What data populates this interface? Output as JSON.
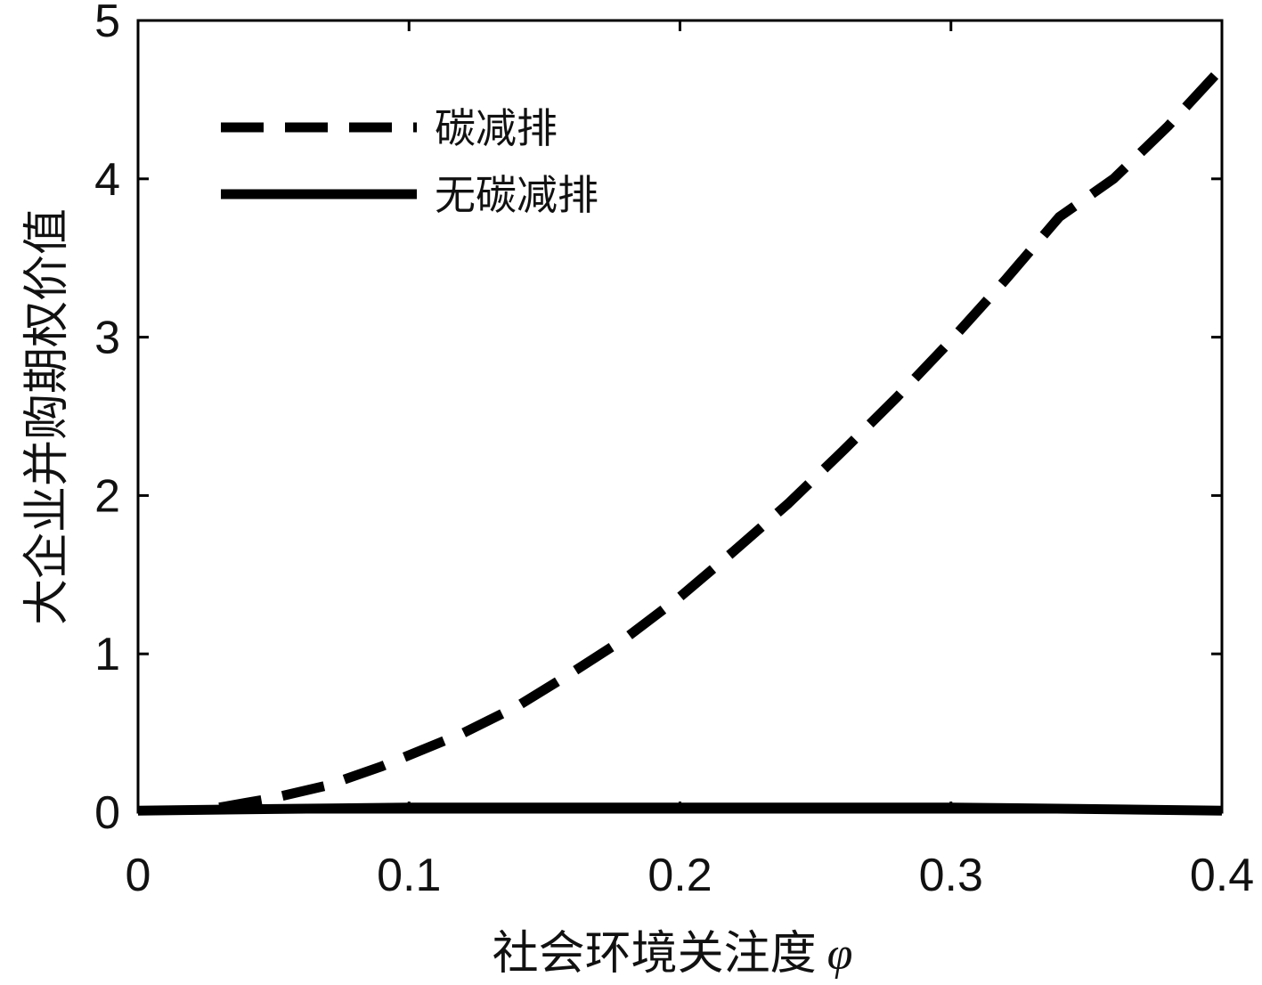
{
  "chart_data": {
    "type": "line",
    "title": "",
    "xlabel": "社会环境关注度",
    "xlabel_symbol": "φ",
    "ylabel": "大企业并购期权价值",
    "xlim": [
      0,
      0.4
    ],
    "ylim": [
      0,
      5
    ],
    "x_ticks": [
      {
        "value": 0,
        "label": "0"
      },
      {
        "value": 0.1,
        "label": "0.1"
      },
      {
        "value": 0.2,
        "label": "0.2"
      },
      {
        "value": 0.3,
        "label": "0.3"
      },
      {
        "value": 0.4,
        "label": "0.4"
      }
    ],
    "y_ticks": [
      {
        "value": 0,
        "label": "0"
      },
      {
        "value": 1,
        "label": "1"
      },
      {
        "value": 2,
        "label": "2"
      },
      {
        "value": 3,
        "label": "3"
      },
      {
        "value": 4,
        "label": "4"
      },
      {
        "value": 5,
        "label": "5"
      }
    ],
    "grid": false,
    "legend_position": "top-left",
    "series": [
      {
        "name": "碳减排",
        "style": "dashed",
        "color": "#000000",
        "x": [
          0.03,
          0.04,
          0.05,
          0.06,
          0.07,
          0.08,
          0.09,
          0.1,
          0.12,
          0.14,
          0.16,
          0.18,
          0.2,
          0.22,
          0.24,
          0.26,
          0.28,
          0.3,
          0.32,
          0.34,
          0.36,
          0.38,
          0.4
        ],
        "y": [
          0.03,
          0.06,
          0.09,
          0.13,
          0.17,
          0.23,
          0.29,
          0.36,
          0.5,
          0.67,
          0.88,
          1.1,
          1.36,
          1.65,
          1.95,
          2.28,
          2.62,
          2.98,
          3.36,
          3.76,
          4.0,
          4.33,
          4.7
        ]
      },
      {
        "name": "无碳减排",
        "style": "solid",
        "color": "#000000",
        "x": [
          0,
          0.05,
          0.1,
          0.15,
          0.2,
          0.25,
          0.3,
          0.35,
          0.4
        ],
        "y": [
          0.01,
          0.02,
          0.03,
          0.03,
          0.03,
          0.03,
          0.03,
          0.02,
          0.01
        ]
      }
    ]
  }
}
